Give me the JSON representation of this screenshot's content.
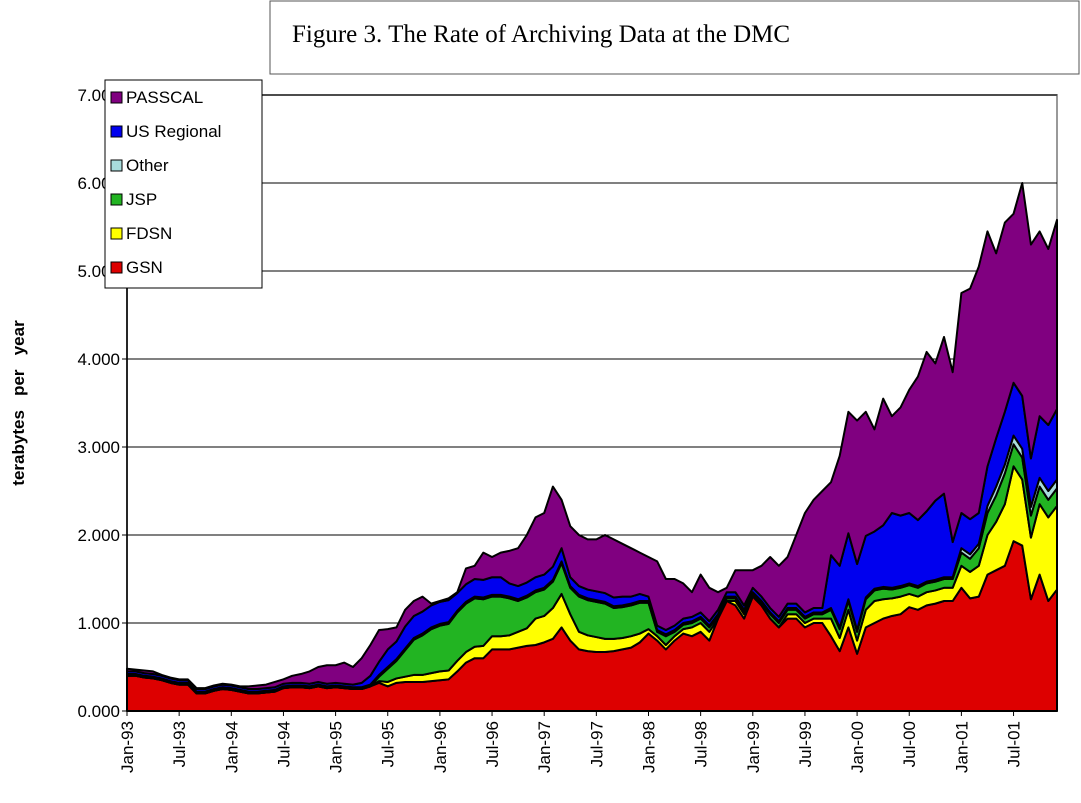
{
  "chart_data": {
    "type": "stacked_area",
    "title": "Figure 3.  The Rate of Archiving Data at the DMC",
    "ylabel": "terabytes   per   year",
    "categories": [
      "Jan-93",
      null,
      null,
      null,
      null,
      null,
      "Jul-93",
      null,
      null,
      null,
      null,
      null,
      "Jan-94",
      null,
      null,
      null,
      null,
      null,
      "Jul-94",
      null,
      null,
      null,
      null,
      null,
      "Jan-95",
      null,
      null,
      null,
      null,
      null,
      "Jul-95",
      null,
      null,
      null,
      null,
      null,
      "Jan-96",
      null,
      null,
      null,
      null,
      null,
      "Jul-96",
      null,
      null,
      null,
      null,
      null,
      "Jan-97",
      null,
      null,
      null,
      null,
      null,
      "Jul-97",
      null,
      null,
      null,
      null,
      null,
      "Jan-98",
      null,
      null,
      null,
      null,
      null,
      "Jul-98",
      null,
      null,
      null,
      null,
      null,
      "Jan-99",
      null,
      null,
      null,
      null,
      null,
      "Jul-99",
      null,
      null,
      null,
      null,
      null,
      "Jan-00",
      null,
      null,
      null,
      null,
      null,
      "Jul-00",
      null,
      null,
      null,
      null,
      null,
      "Jan-01",
      null,
      null,
      null,
      null,
      null,
      "Jul-01",
      null,
      null,
      null,
      null,
      null
    ],
    "series": [
      {
        "name": "GSN",
        "color": "#dd0000",
        "values": [
          0.4,
          0.4,
          0.38,
          0.37,
          0.35,
          0.32,
          0.3,
          0.3,
          0.2,
          0.2,
          0.23,
          0.25,
          0.24,
          0.22,
          0.2,
          0.2,
          0.21,
          0.22,
          0.26,
          0.27,
          0.27,
          0.26,
          0.28,
          0.26,
          0.27,
          0.26,
          0.25,
          0.25,
          0.28,
          0.32,
          0.28,
          0.32,
          0.33,
          0.33,
          0.33,
          0.34,
          0.35,
          0.36,
          0.45,
          0.55,
          0.6,
          0.6,
          0.7,
          0.7,
          0.7,
          0.72,
          0.74,
          0.75,
          0.78,
          0.82,
          0.95,
          0.8,
          0.7,
          0.68,
          0.67,
          0.67,
          0.68,
          0.7,
          0.72,
          0.78,
          0.88,
          0.8,
          0.7,
          0.8,
          0.88,
          0.85,
          0.9,
          0.8,
          1.05,
          1.25,
          1.2,
          1.05,
          1.3,
          1.2,
          1.05,
          0.95,
          1.05,
          1.05,
          0.95,
          1.0,
          1.0,
          0.85,
          0.68,
          0.95,
          0.65,
          0.95,
          1.0,
          1.05,
          1.08,
          1.1,
          1.18,
          1.15,
          1.2,
          1.22,
          1.25,
          1.25,
          1.4,
          1.28,
          1.3,
          1.55,
          1.6,
          1.65,
          1.93,
          1.88,
          1.27,
          1.55,
          1.25,
          1.38
        ]
      },
      {
        "name": "FDSN",
        "color": "#ffff00",
        "values": [
          0,
          0,
          0,
          0,
          0,
          0,
          0,
          0,
          0,
          0,
          0,
          0,
          0,
          0,
          0,
          0,
          0,
          0,
          0,
          0,
          0,
          0,
          0,
          0,
          0,
          0,
          0,
          0,
          0,
          0.02,
          0.05,
          0.05,
          0.06,
          0.08,
          0.08,
          0.09,
          0.1,
          0.1,
          0.12,
          0.12,
          0.13,
          0.14,
          0.15,
          0.15,
          0.16,
          0.18,
          0.2,
          0.3,
          0.3,
          0.35,
          0.38,
          0.3,
          0.2,
          0.18,
          0.17,
          0.15,
          0.14,
          0.13,
          0.13,
          0.1,
          0.05,
          0.05,
          0.05,
          0.05,
          0.05,
          0.1,
          0.1,
          0.1,
          0,
          0,
          0.05,
          0.05,
          0,
          0,
          0,
          0,
          0.05,
          0.05,
          0.05,
          0.05,
          0.05,
          0.2,
          0.15,
          0.2,
          0.15,
          0.2,
          0.25,
          0.22,
          0.2,
          0.2,
          0.15,
          0.15,
          0.15,
          0.15,
          0.15,
          0.15,
          0.25,
          0.3,
          0.35,
          0.45,
          0.55,
          0.7,
          0.85,
          0.75,
          0.7,
          0.8,
          0.95,
          0.95
        ]
      },
      {
        "name": "JSP",
        "color": "#22b422",
        "values": [
          0,
          0,
          0,
          0,
          0,
          0,
          0,
          0,
          0,
          0,
          0,
          0,
          0,
          0,
          0,
          0,
          0,
          0,
          0,
          0,
          0,
          0,
          0,
          0,
          0,
          0,
          0,
          0,
          0,
          0.05,
          0.15,
          0.2,
          0.3,
          0.4,
          0.45,
          0.5,
          0.52,
          0.53,
          0.55,
          0.55,
          0.55,
          0.53,
          0.45,
          0.45,
          0.42,
          0.35,
          0.35,
          0.3,
          0.3,
          0.3,
          0.35,
          0.3,
          0.4,
          0.4,
          0.4,
          0.4,
          0.35,
          0.35,
          0.35,
          0.35,
          0.3,
          0.05,
          0.1,
          0.05,
          0.05,
          0.05,
          0.05,
          0.05,
          0.03,
          0.03,
          0.03,
          0.03,
          0.03,
          0.03,
          0.05,
          0.05,
          0.05,
          0.05,
          0.05,
          0.05,
          0.05,
          0.1,
          0.1,
          0.1,
          0.1,
          0.12,
          0.12,
          0.12,
          0.1,
          0.1,
          0.1,
          0.1,
          0.1,
          0.1,
          0.1,
          0.1,
          0.15,
          0.15,
          0.2,
          0.25,
          0.3,
          0.35,
          0.25,
          0.25,
          0.25,
          0.2,
          0.2,
          0.2
        ]
      },
      {
        "name": "Other",
        "color": "#a8dcdc",
        "values": [
          0.02,
          0.02,
          0.02,
          0.02,
          0.02,
          0.02,
          0.02,
          0.02,
          0.02,
          0.02,
          0.02,
          0.02,
          0.02,
          0.02,
          0.02,
          0.02,
          0.02,
          0.02,
          0.02,
          0.02,
          0.02,
          0.02,
          0.02,
          0.02,
          0.02,
          0.02,
          0.02,
          0.02,
          0.02,
          0.02,
          0.02,
          0.02,
          0.02,
          0.02,
          0.02,
          0.02,
          0.02,
          0.02,
          0.02,
          0.02,
          0.02,
          0.02,
          0.02,
          0.02,
          0.02,
          0.02,
          0.02,
          0.02,
          0.02,
          0.02,
          0.02,
          0.02,
          0.02,
          0.02,
          0.02,
          0.02,
          0.02,
          0.02,
          0.02,
          0.02,
          0.02,
          0.02,
          0.02,
          0.02,
          0.02,
          0.02,
          0.02,
          0.02,
          0.02,
          0.02,
          0.02,
          0.02,
          0.02,
          0.02,
          0.02,
          0.02,
          0.02,
          0.02,
          0.02,
          0.02,
          0.02,
          0.02,
          0.02,
          0.02,
          0.02,
          0.02,
          0.02,
          0.02,
          0.02,
          0.02,
          0.02,
          0.02,
          0.02,
          0.02,
          0.02,
          0.02,
          0.05,
          0.05,
          0.05,
          0.08,
          0.1,
          0.1,
          0.1,
          0.1,
          0.1,
          0.1,
          0.1,
          0.1
        ]
      },
      {
        "name": "US Regional",
        "color": "#0000ee",
        "values": [
          0.03,
          0.03,
          0.03,
          0.03,
          0.03,
          0.03,
          0.03,
          0.03,
          0.03,
          0.03,
          0.03,
          0.03,
          0.03,
          0.03,
          0.03,
          0.03,
          0.03,
          0.03,
          0.03,
          0.03,
          0.03,
          0.03,
          0.03,
          0.03,
          0.03,
          0.03,
          0.03,
          0.05,
          0.1,
          0.15,
          0.2,
          0.2,
          0.25,
          0.25,
          0.25,
          0.25,
          0.25,
          0.25,
          0.2,
          0.2,
          0.2,
          0.2,
          0.2,
          0.2,
          0.15,
          0.15,
          0.15,
          0.15,
          0.15,
          0.15,
          0.15,
          0.1,
          0.1,
          0.1,
          0.1,
          0.1,
          0.1,
          0.1,
          0.08,
          0.08,
          0.05,
          0.05,
          0.05,
          0.05,
          0.05,
          0.05,
          0.05,
          0.05,
          0.05,
          0.05,
          0.05,
          0.05,
          0.05,
          0.05,
          0.05,
          0.05,
          0.05,
          0.05,
          0.05,
          0.05,
          0.05,
          0.6,
          0.7,
          0.75,
          0.75,
          0.7,
          0.65,
          0.7,
          0.85,
          0.8,
          0.8,
          0.75,
          0.8,
          0.9,
          0.95,
          0.4,
          0.4,
          0.4,
          0.35,
          0.45,
          0.55,
          0.6,
          0.6,
          0.6,
          0.55,
          0.7,
          0.75,
          0.8
        ]
      },
      {
        "name": "PASSCAL",
        "color": "#800080",
        "values": [
          0.03,
          0.02,
          0.03,
          0.03,
          0.01,
          0.01,
          0.01,
          0.01,
          0.01,
          0.01,
          0.01,
          0.01,
          0.01,
          0.01,
          0.03,
          0.04,
          0.04,
          0.06,
          0.05,
          0.08,
          0.1,
          0.14,
          0.17,
          0.21,
          0.2,
          0.24,
          0.2,
          0.28,
          0.35,
          0.36,
          0.23,
          0.16,
          0.19,
          0.17,
          0.17,
          0.02,
          0.01,
          0.02,
          0.01,
          0.18,
          0.15,
          0.31,
          0.23,
          0.28,
          0.37,
          0.43,
          0.54,
          0.68,
          0.7,
          0.91,
          0.55,
          0.58,
          0.58,
          0.57,
          0.59,
          0.66,
          0.66,
          0.6,
          0.55,
          0.47,
          0.45,
          0.73,
          0.58,
          0.53,
          0.4,
          0.28,
          0.43,
          0.38,
          0.2,
          0.05,
          0.25,
          0.4,
          0.2,
          0.35,
          0.58,
          0.58,
          0.53,
          0.78,
          1.13,
          1.23,
          1.33,
          0.83,
          1.25,
          1.38,
          1.63,
          1.41,
          1.16,
          1.44,
          1.1,
          1.23,
          1.4,
          1.63,
          1.81,
          1.56,
          1.78,
          1.93,
          2.5,
          2.62,
          2.8,
          2.67,
          2.1,
          2.15,
          1.92,
          2.42,
          2.43,
          2.1,
          2.0,
          2.15
        ]
      }
    ],
    "ylim": [
      0,
      7
    ],
    "yticks": [
      {
        "value": 0,
        "label": "0.000"
      },
      {
        "value": 1,
        "label": "1.000"
      },
      {
        "value": 2,
        "label": "2.000"
      },
      {
        "value": 3,
        "label": "3.000"
      },
      {
        "value": 4,
        "label": "4.000"
      },
      {
        "value": 5,
        "label": "5.000"
      },
      {
        "value": 6,
        "label": "6.000"
      },
      {
        "value": 7,
        "label": "7.000"
      }
    ],
    "grid": true,
    "legend": "upper left"
  }
}
